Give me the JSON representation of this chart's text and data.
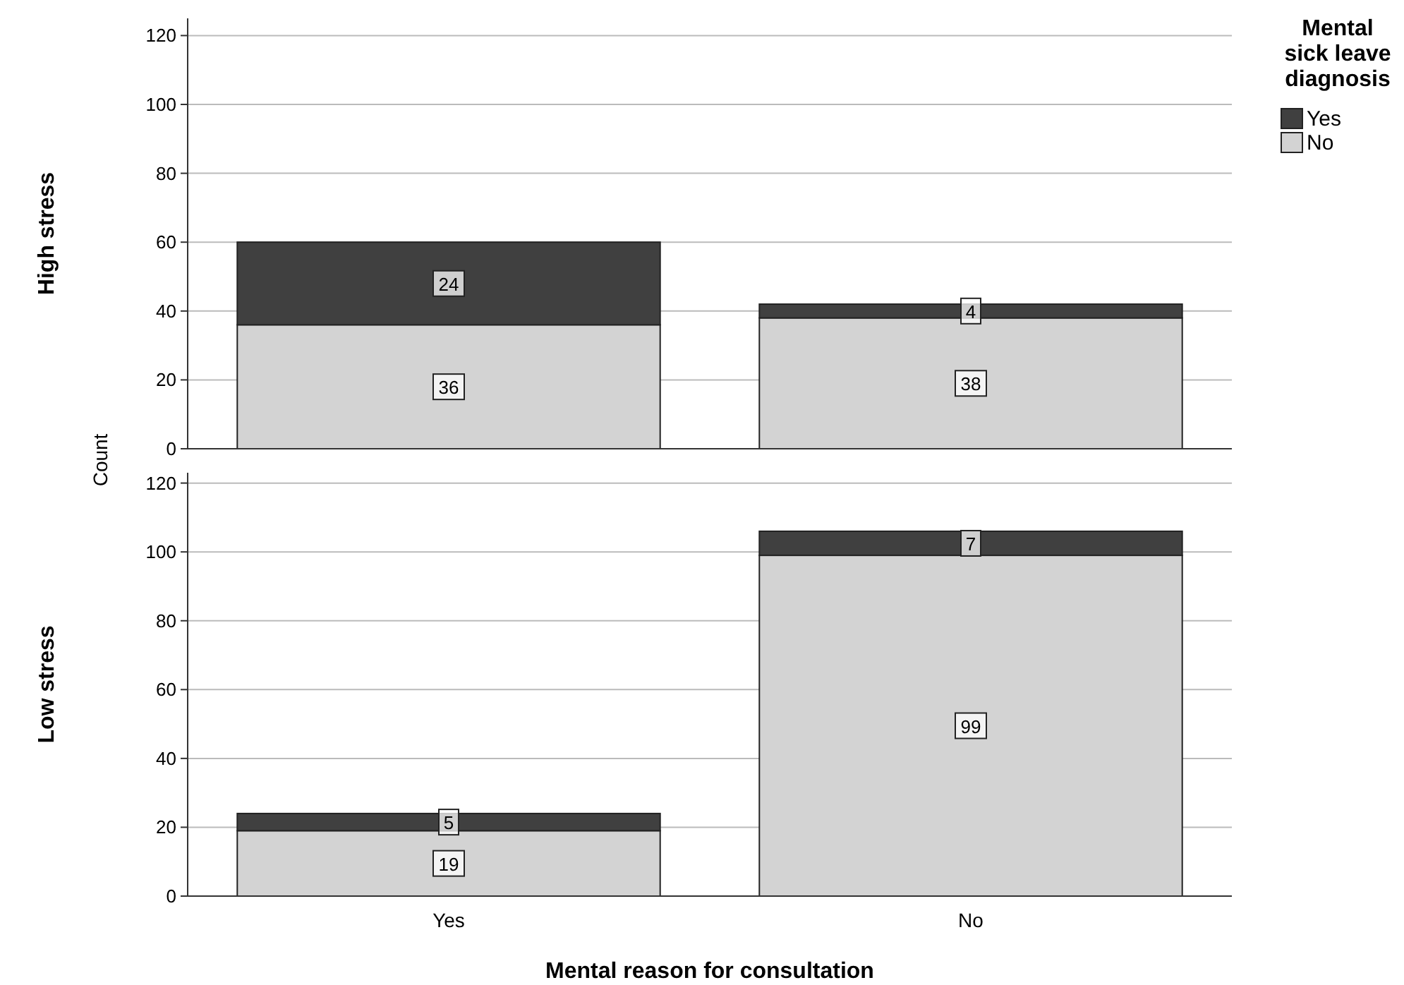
{
  "chart_data": [
    {
      "type": "bar",
      "ylabel": "High stress",
      "categories": [
        null,
        null
      ],
      "stacked": true,
      "data_labels": true,
      "grid": "y",
      "tick_labels": "y",
      "legend": "top right",
      "legend_title": "Mental sick leave diagnosis",
      "ylim": [
        0,
        125
      ],
      "yticks": [
        0,
        20,
        40,
        60,
        80,
        100,
        120
      ],
      "annotations": [
        "Count"
      ],
      "series": [
        {
          "name": "No",
          "color": "#d3d3d3",
          "values": [
            36,
            38
          ]
        },
        {
          "name": "Yes",
          "color": "#404040",
          "values": [
            24,
            4
          ]
        }
      ]
    },
    {
      "type": "bar",
      "ylabel": "Low stress",
      "xlabel": "Mental reason for consultation",
      "categories": [
        "Yes",
        "No"
      ],
      "stacked": true,
      "data_labels": true,
      "grid": "y",
      "ylim": [
        0,
        123
      ],
      "yticks": [
        0,
        20,
        40,
        60,
        80,
        100,
        120
      ],
      "series": [
        {
          "color": "#d3d3d3",
          "values": [
            19,
            99
          ]
        },
        {
          "color": "#404040",
          "values": [
            5,
            7
          ]
        }
      ]
    }
  ]
}
